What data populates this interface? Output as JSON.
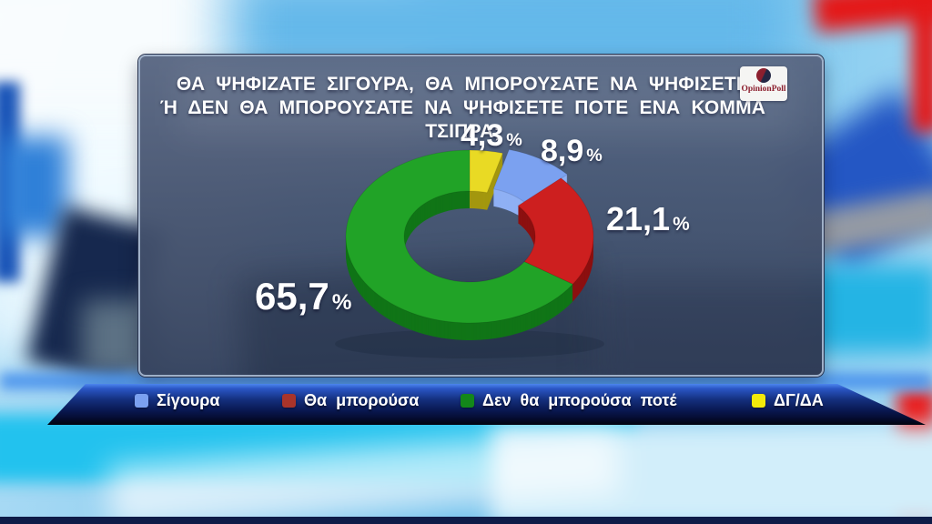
{
  "panel": {
    "title_line1": "ΘΑ ΨΗΦΙΖΑΤΕ ΣΙΓΟΥΡΑ, ΘΑ ΜΠΟΡΟΥΣΑΤΕ ΝΑ ΨΗΦΙΣΕΤΕ",
    "title_line2": "Ή ΔΕΝ ΘΑ ΜΠΟΡΟΥΣΑΤΕ ΝΑ ΨΗΦΙΣΕΤΕ ΠΟΤΕ ΕΝΑ ΚΟΜΜΑ ΤΣΙΠΡΑ;",
    "logo_text": "OpinionPoll"
  },
  "chart_data": {
    "type": "pie",
    "donut": true,
    "title": "ΘΑ ΨΗΦΙΖΑΤΕ ΣΙΓΟΥΡΑ, ΘΑ ΜΠΟΡΟΥΣΑΤΕ ΝΑ ΨΗΦΙΣΕΤΕ Ή ΔΕΝ ΘΑ ΜΠΟΡΟΥΣΑΤΕ ΝΑ ΨΗΦΙΣΕΤΕ ΠΟΤΕ ΕΝΑ ΚΟΜΜΑ ΤΣΙΠΡΑ;",
    "legend_position": "bottom",
    "percent_sign": "%",
    "start_angle_deg": 0,
    "direction": "clockwise",
    "segments": [
      {
        "label": "ΔΓ/ΔΑ",
        "value": 4.3,
        "display": "4,3",
        "color": "#e9da24",
        "side": "#a3970e"
      },
      {
        "label": "Σίγουρα",
        "value": 8.9,
        "display": "8,9",
        "color": "#7ba1f0",
        "side": "#8fb0f4",
        "offset": [
          7,
          -4
        ]
      },
      {
        "label": "Θα μπορούσα",
        "value": 21.1,
        "display": "21,1",
        "color": "#cd1f1f",
        "side": "#8c1010"
      },
      {
        "label": "Δεν θα μπορούσα ποτέ",
        "value": 65.7,
        "display": "65,7",
        "color": "#21a327",
        "side": "#107517"
      }
    ]
  },
  "legend": {
    "items": [
      {
        "label": "Σίγουρα",
        "color": "#7ba1f0"
      },
      {
        "label": "Θα μπορούσα",
        "color": "#a8342a"
      },
      {
        "label": "Δεν θα μπορούσα ποτέ",
        "color": "#13871a"
      },
      {
        "label": "ΔΓ/ΔΑ",
        "color": "#f2ea0a"
      }
    ]
  }
}
